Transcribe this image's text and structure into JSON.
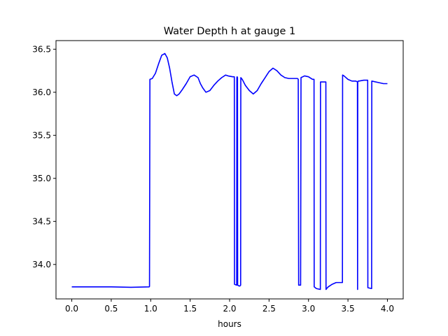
{
  "chart_data": {
    "type": "line",
    "title": "Water Depth h at gauge 1",
    "xlabel": "hours",
    "ylabel": "",
    "xlim": [
      -0.2,
      4.2
    ],
    "ylim": [
      33.6,
      36.6
    ],
    "xticks": [
      0.0,
      0.5,
      1.0,
      1.5,
      2.0,
      2.5,
      3.0,
      3.5,
      4.0
    ],
    "xtick_labels": [
      "0.0",
      "0.5",
      "1.0",
      "1.5",
      "2.0",
      "2.5",
      "3.0",
      "3.5",
      "4.0"
    ],
    "yticks": [
      34.0,
      34.5,
      35.0,
      35.5,
      36.0,
      36.5
    ],
    "ytick_labels": [
      "34.0",
      "34.5",
      "35.0",
      "35.5",
      "36.0",
      "36.5"
    ],
    "grid": false,
    "series": [
      {
        "color": "#0000ff",
        "x": [
          0.0,
          0.25,
          0.5,
          0.75,
          0.98,
          0.985,
          0.99,
          1.02,
          1.06,
          1.1,
          1.14,
          1.18,
          1.21,
          1.24,
          1.27,
          1.3,
          1.33,
          1.36,
          1.4,
          1.45,
          1.5,
          1.55,
          1.6,
          1.63,
          1.66,
          1.7,
          1.75,
          1.8,
          1.85,
          1.9,
          1.95,
          1.98,
          2.04,
          2.06,
          2.062,
          2.09,
          2.092,
          2.095,
          2.1,
          2.102,
          2.12,
          2.13,
          2.14,
          2.142,
          2.16,
          2.2,
          2.25,
          2.3,
          2.35,
          2.4,
          2.45,
          2.5,
          2.55,
          2.6,
          2.65,
          2.7,
          2.75,
          2.8,
          2.86,
          2.87,
          2.875,
          2.9,
          2.905,
          2.95,
          3.0,
          3.05,
          3.07,
          3.072,
          3.1,
          3.15,
          3.152,
          3.22,
          3.222,
          3.23,
          3.25,
          3.3,
          3.35,
          3.4,
          3.43,
          3.432,
          3.45,
          3.5,
          3.55,
          3.6,
          3.62,
          3.622,
          3.624,
          3.63,
          3.64,
          3.7,
          3.74,
          3.75,
          3.752,
          3.8,
          3.802,
          3.9,
          3.95,
          4.0
        ],
        "y": [
          33.74,
          33.74,
          33.74,
          33.735,
          33.74,
          33.745,
          36.15,
          36.16,
          36.22,
          36.33,
          36.43,
          36.45,
          36.4,
          36.28,
          36.12,
          35.98,
          35.96,
          35.98,
          36.03,
          36.1,
          36.18,
          36.2,
          36.17,
          36.1,
          36.05,
          36.0,
          36.02,
          36.08,
          36.13,
          36.17,
          36.2,
          36.19,
          36.18,
          36.18,
          33.77,
          33.76,
          36.17,
          36.18,
          36.17,
          33.76,
          33.75,
          33.75,
          33.76,
          36.17,
          36.15,
          36.08,
          36.02,
          35.98,
          36.02,
          36.1,
          36.17,
          36.24,
          36.28,
          36.25,
          36.2,
          36.17,
          36.16,
          36.16,
          36.16,
          36.15,
          33.76,
          33.76,
          36.17,
          36.19,
          36.18,
          36.15,
          36.15,
          33.74,
          33.72,
          33.71,
          36.12,
          36.12,
          33.71,
          33.72,
          33.74,
          33.77,
          33.79,
          33.79,
          33.79,
          36.2,
          36.19,
          36.15,
          36.13,
          36.13,
          36.12,
          33.71,
          36.12,
          36.13,
          36.13,
          36.14,
          36.14,
          36.14,
          33.73,
          33.72,
          36.13,
          36.11,
          36.1,
          36.1
        ]
      }
    ]
  }
}
